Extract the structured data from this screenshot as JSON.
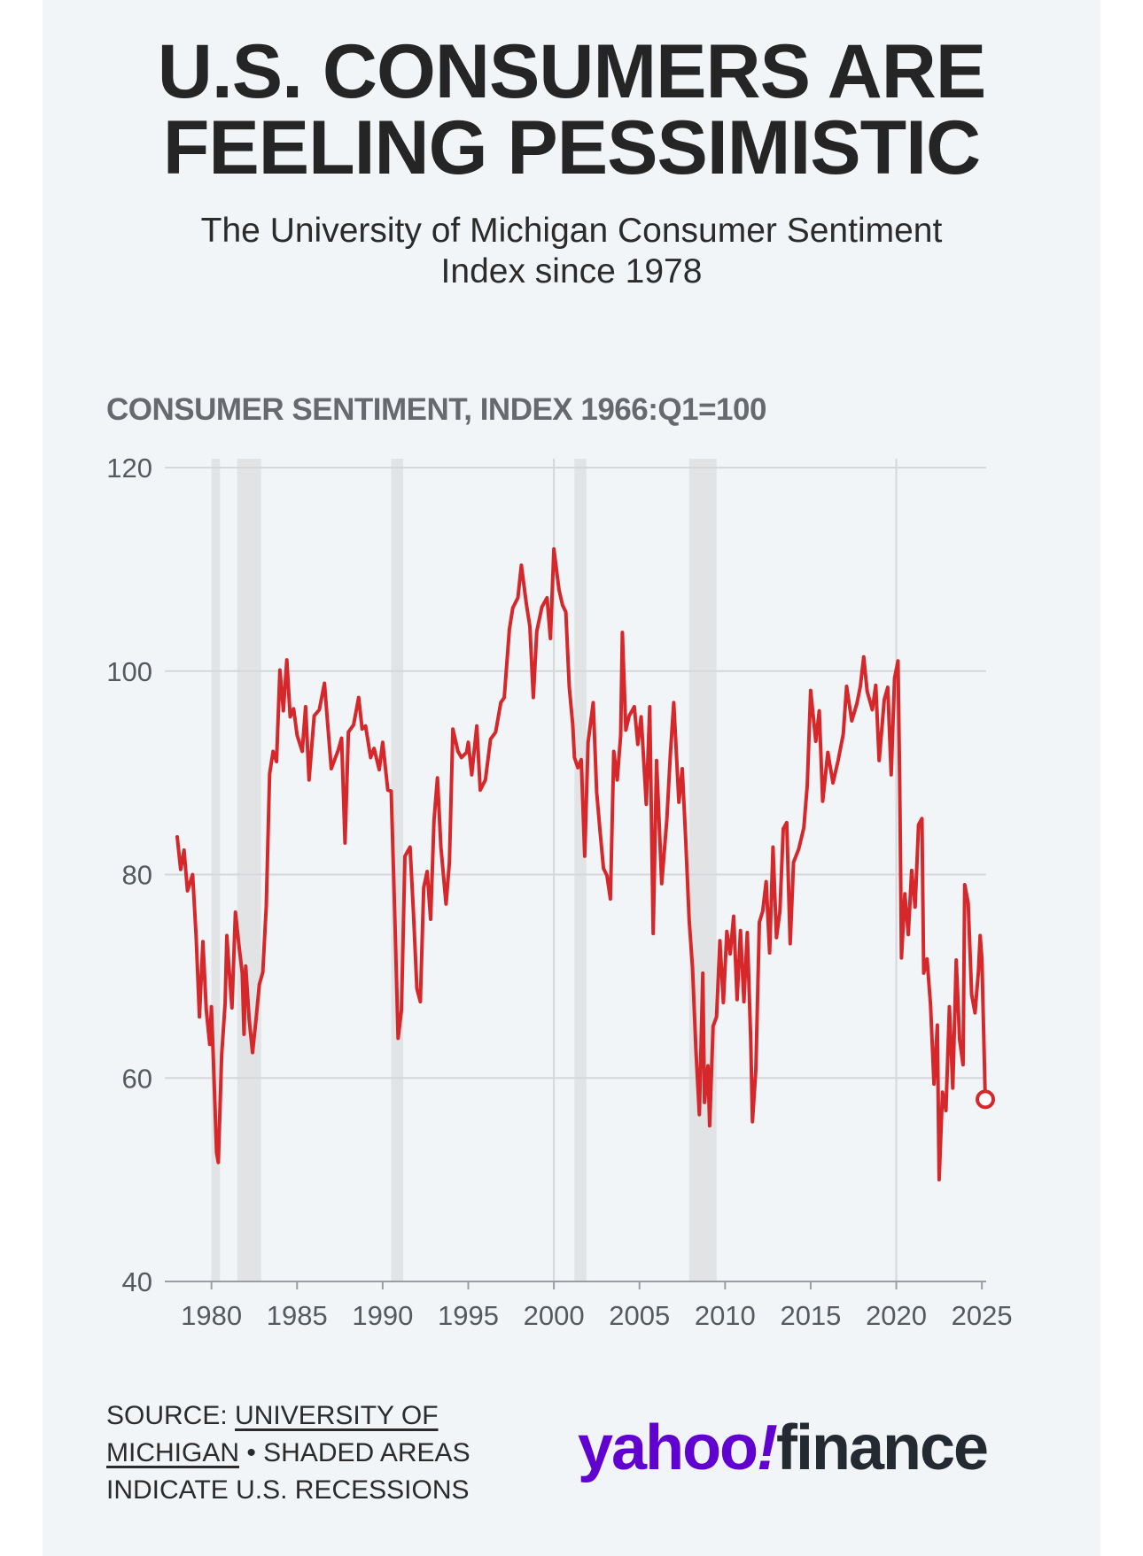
{
  "header": {
    "title_line1": "U.S. CONSUMERS ARE",
    "title_line2": "FEELING PESSIMISTIC",
    "subtitle_line1": "The University of Michigan Consumer Sentiment",
    "subtitle_line2": "Index since 1978"
  },
  "chart_label": "CONSUMER SENTIMENT, INDEX 1966:Q1=100",
  "footer": {
    "source_prefix": "SOURCE: ",
    "source_link_line1": "UNIVERSITY OF",
    "source_link_line2": "MICHIGAN",
    "source_suffix": " • SHADED AREAS",
    "source_line3": "INDICATE U.S. RECESSIONS"
  },
  "logo": {
    "part1": "yahoo",
    "part2": "!",
    "part3": "finance"
  },
  "colors": {
    "line": "#d6282b",
    "recession": "#e1e3e5",
    "grid": "#d5d7da",
    "axis_text": "#555a5f",
    "brand": "#6001d2"
  },
  "chart_data": {
    "type": "line",
    "title": "CONSUMER SENTIMENT, INDEX 1966:Q1=100",
    "xlim": [
      1978,
      2025.25
    ],
    "ylim": [
      40,
      120
    ],
    "yticks": [
      40,
      60,
      80,
      100,
      120
    ],
    "xticks": [
      1980,
      1985,
      1990,
      1995,
      2000,
      2005,
      2010,
      2015,
      2020,
      2025
    ],
    "grid": true,
    "recessions": [
      [
        1980.0,
        1980.5
      ],
      [
        1981.5,
        1982.9
      ],
      [
        1990.5,
        1991.2
      ],
      [
        2001.2,
        2001.9
      ],
      [
        2007.9,
        2009.5
      ]
    ],
    "series": [
      {
        "points": [
          [
            1978.0,
            83.7
          ],
          [
            1978.2,
            80.5
          ],
          [
            1978.4,
            82.4
          ],
          [
            1978.6,
            78.4
          ],
          [
            1978.9,
            80.0
          ],
          [
            1979.1,
            74.0
          ],
          [
            1979.3,
            66.0
          ],
          [
            1979.5,
            73.4
          ],
          [
            1979.7,
            66.7
          ],
          [
            1979.9,
            63.3
          ],
          [
            1980.0,
            67.0
          ],
          [
            1980.1,
            62.3
          ],
          [
            1980.3,
            52.7
          ],
          [
            1980.4,
            51.7
          ],
          [
            1980.6,
            62.3
          ],
          [
            1980.8,
            67.4
          ],
          [
            1980.9,
            74.0
          ],
          [
            1981.0,
            71.4
          ],
          [
            1981.2,
            66.9
          ],
          [
            1981.4,
            76.3
          ],
          [
            1981.6,
            73.1
          ],
          [
            1981.8,
            70.3
          ],
          [
            1981.9,
            64.3
          ],
          [
            1982.0,
            71.0
          ],
          [
            1982.2,
            65.8
          ],
          [
            1982.4,
            62.5
          ],
          [
            1982.6,
            65.7
          ],
          [
            1982.8,
            69.2
          ],
          [
            1983.0,
            70.4
          ],
          [
            1983.2,
            76.9
          ],
          [
            1983.4,
            89.9
          ],
          [
            1983.6,
            92.1
          ],
          [
            1983.8,
            91.1
          ],
          [
            1984.0,
            100.1
          ],
          [
            1984.2,
            96.1
          ],
          [
            1984.4,
            101.1
          ],
          [
            1984.6,
            95.5
          ],
          [
            1984.8,
            96.3
          ],
          [
            1985.0,
            93.7
          ],
          [
            1985.3,
            92.1
          ],
          [
            1985.5,
            96.5
          ],
          [
            1985.7,
            89.3
          ],
          [
            1986.0,
            95.6
          ],
          [
            1986.3,
            96.2
          ],
          [
            1986.6,
            98.8
          ],
          [
            1986.8,
            94.6
          ],
          [
            1987.0,
            90.4
          ],
          [
            1987.4,
            92.2
          ],
          [
            1987.6,
            93.4
          ],
          [
            1987.8,
            83.1
          ],
          [
            1988.0,
            94.0
          ],
          [
            1988.3,
            94.7
          ],
          [
            1988.6,
            97.4
          ],
          [
            1988.8,
            94.3
          ],
          [
            1989.0,
            94.6
          ],
          [
            1989.3,
            91.5
          ],
          [
            1989.5,
            92.4
          ],
          [
            1989.8,
            90.3
          ],
          [
            1990.0,
            93.0
          ],
          [
            1990.3,
            88.3
          ],
          [
            1990.5,
            88.2
          ],
          [
            1990.7,
            76.4
          ],
          [
            1990.9,
            63.9
          ],
          [
            1991.1,
            66.7
          ],
          [
            1991.3,
            81.8
          ],
          [
            1991.6,
            82.7
          ],
          [
            1991.8,
            76.1
          ],
          [
            1992.0,
            68.8
          ],
          [
            1992.2,
            67.5
          ],
          [
            1992.4,
            78.7
          ],
          [
            1992.6,
            80.3
          ],
          [
            1992.8,
            75.6
          ],
          [
            1993.0,
            85.3
          ],
          [
            1993.2,
            89.5
          ],
          [
            1993.4,
            82.7
          ],
          [
            1993.7,
            77.1
          ],
          [
            1993.9,
            81.2
          ],
          [
            1994.1,
            94.3
          ],
          [
            1994.4,
            92.1
          ],
          [
            1994.6,
            91.5
          ],
          [
            1994.9,
            92.0
          ],
          [
            1995.0,
            93.0
          ],
          [
            1995.2,
            89.8
          ],
          [
            1995.5,
            94.6
          ],
          [
            1995.7,
            88.3
          ],
          [
            1996.0,
            89.3
          ],
          [
            1996.3,
            93.3
          ],
          [
            1996.6,
            94.0
          ],
          [
            1996.9,
            96.9
          ],
          [
            1997.1,
            97.4
          ],
          [
            1997.4,
            104.1
          ],
          [
            1997.6,
            106.2
          ],
          [
            1997.9,
            107.2
          ],
          [
            1998.1,
            110.4
          ],
          [
            1998.4,
            106.5
          ],
          [
            1998.6,
            104.4
          ],
          [
            1998.8,
            97.4
          ],
          [
            1999.0,
            103.9
          ],
          [
            1999.3,
            106.3
          ],
          [
            1999.6,
            107.2
          ],
          [
            1999.8,
            103.2
          ],
          [
            2000.0,
            112.0
          ],
          [
            2000.3,
            108.0
          ],
          [
            2000.5,
            106.5
          ],
          [
            2000.7,
            105.8
          ],
          [
            2000.9,
            98.4
          ],
          [
            2001.1,
            94.7
          ],
          [
            2001.2,
            91.5
          ],
          [
            2001.4,
            90.5
          ],
          [
            2001.6,
            91.3
          ],
          [
            2001.8,
            81.8
          ],
          [
            2002.0,
            93.0
          ],
          [
            2002.3,
            96.9
          ],
          [
            2002.5,
            88.1
          ],
          [
            2002.7,
            84.2
          ],
          [
            2002.9,
            80.6
          ],
          [
            2003.1,
            79.9
          ],
          [
            2003.3,
            77.6
          ],
          [
            2003.5,
            92.1
          ],
          [
            2003.7,
            89.3
          ],
          [
            2003.9,
            93.7
          ],
          [
            2004.0,
            103.8
          ],
          [
            2004.2,
            94.2
          ],
          [
            2004.4,
            95.6
          ],
          [
            2004.7,
            96.5
          ],
          [
            2004.9,
            92.8
          ],
          [
            2005.1,
            95.5
          ],
          [
            2005.4,
            86.9
          ],
          [
            2005.6,
            96.5
          ],
          [
            2005.8,
            74.2
          ],
          [
            2006.0,
            91.2
          ],
          [
            2006.3,
            79.1
          ],
          [
            2006.6,
            85.4
          ],
          [
            2006.8,
            91.7
          ],
          [
            2007.0,
            96.9
          ],
          [
            2007.3,
            87.1
          ],
          [
            2007.5,
            90.4
          ],
          [
            2007.7,
            83.4
          ],
          [
            2007.9,
            75.5
          ],
          [
            2008.1,
            70.8
          ],
          [
            2008.3,
            62.6
          ],
          [
            2008.5,
            56.4
          ],
          [
            2008.7,
            70.3
          ],
          [
            2008.8,
            57.6
          ],
          [
            2009.0,
            61.2
          ],
          [
            2009.1,
            55.3
          ],
          [
            2009.3,
            65.1
          ],
          [
            2009.5,
            66.0
          ],
          [
            2009.7,
            73.5
          ],
          [
            2009.9,
            67.4
          ],
          [
            2010.1,
            74.4
          ],
          [
            2010.3,
            72.2
          ],
          [
            2010.5,
            75.9
          ],
          [
            2010.7,
            67.7
          ],
          [
            2010.9,
            74.5
          ],
          [
            2011.1,
            67.5
          ],
          [
            2011.3,
            74.3
          ],
          [
            2011.5,
            63.7
          ],
          [
            2011.6,
            55.7
          ],
          [
            2011.8,
            60.9
          ],
          [
            2012.0,
            75.3
          ],
          [
            2012.2,
            76.4
          ],
          [
            2012.4,
            79.3
          ],
          [
            2012.6,
            72.3
          ],
          [
            2012.8,
            82.7
          ],
          [
            2013.0,
            73.8
          ],
          [
            2013.2,
            76.4
          ],
          [
            2013.4,
            84.5
          ],
          [
            2013.6,
            85.1
          ],
          [
            2013.8,
            73.2
          ],
          [
            2014.0,
            81.2
          ],
          [
            2014.3,
            82.5
          ],
          [
            2014.6,
            84.6
          ],
          [
            2014.8,
            88.8
          ],
          [
            2015.0,
            98.1
          ],
          [
            2015.3,
            93.1
          ],
          [
            2015.5,
            96.1
          ],
          [
            2015.7,
            87.2
          ],
          [
            2016.0,
            92.0
          ],
          [
            2016.3,
            89.0
          ],
          [
            2016.6,
            91.2
          ],
          [
            2016.9,
            93.8
          ],
          [
            2017.1,
            98.5
          ],
          [
            2017.4,
            95.1
          ],
          [
            2017.7,
            96.8
          ],
          [
            2017.9,
            98.5
          ],
          [
            2018.1,
            101.4
          ],
          [
            2018.3,
            98.0
          ],
          [
            2018.6,
            96.2
          ],
          [
            2018.8,
            98.6
          ],
          [
            2019.0,
            91.2
          ],
          [
            2019.3,
            97.2
          ],
          [
            2019.5,
            98.4
          ],
          [
            2019.7,
            89.8
          ],
          [
            2019.9,
            99.3
          ],
          [
            2020.1,
            101.0
          ],
          [
            2020.2,
            89.1
          ],
          [
            2020.3,
            71.8
          ],
          [
            2020.5,
            78.1
          ],
          [
            2020.7,
            74.1
          ],
          [
            2020.9,
            80.4
          ],
          [
            2021.1,
            76.8
          ],
          [
            2021.3,
            84.9
          ],
          [
            2021.5,
            85.5
          ],
          [
            2021.6,
            70.3
          ],
          [
            2021.8,
            71.7
          ],
          [
            2022.0,
            67.2
          ],
          [
            2022.2,
            59.4
          ],
          [
            2022.4,
            65.2
          ],
          [
            2022.5,
            50.0
          ],
          [
            2022.7,
            58.6
          ],
          [
            2022.9,
            56.8
          ],
          [
            2023.1,
            67.0
          ],
          [
            2023.3,
            59.0
          ],
          [
            2023.5,
            71.6
          ],
          [
            2023.7,
            63.8
          ],
          [
            2023.9,
            61.3
          ],
          [
            2024.0,
            79.0
          ],
          [
            2024.2,
            77.2
          ],
          [
            2024.4,
            68.2
          ],
          [
            2024.6,
            66.4
          ],
          [
            2024.8,
            70.5
          ],
          [
            2024.9,
            74.0
          ],
          [
            2025.0,
            71.7
          ],
          [
            2025.1,
            64.7
          ],
          [
            2025.2,
            57.9
          ]
        ],
        "last_point": [
          2025.2,
          57.9
        ]
      }
    ]
  }
}
